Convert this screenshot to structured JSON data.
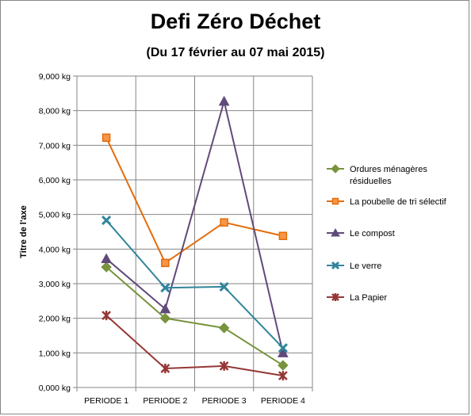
{
  "chart_data": {
    "type": "line",
    "title": "Defi Zéro Déchet",
    "subtitle": "(Du 17 février au 07 mai 2015)",
    "xlabel": "",
    "ylabel": "Titre de l'axe",
    "categories": [
      "PERIODE 1",
      "PERIODE 2",
      "PERIODE 3",
      "PERIODE 4"
    ],
    "ylim": [
      0,
      9000
    ],
    "yticks": [
      0,
      1000,
      2000,
      3000,
      4000,
      5000,
      6000,
      7000,
      8000,
      9000
    ],
    "ytick_labels": [
      "0,000 kg",
      "1,000 kg",
      "2,000 kg",
      "3,000 kg",
      "4,000 kg",
      "5,000 kg",
      "6,000 kg",
      "7,000 kg",
      "8,000 kg",
      "9,000 kg"
    ],
    "grid": true,
    "legend_position": "right",
    "series": [
      {
        "name": "Ordures ménagères résiduelles",
        "legend_lines": [
          "Ordures ménagères",
          "résiduelles"
        ],
        "values": [
          3480,
          2000,
          1720,
          640
        ],
        "color": "#77933C",
        "marker": "diamond"
      },
      {
        "name": "La poubelle de tri sélectif",
        "legend_lines": [
          "La poubelle de tri sélectif"
        ],
        "values": [
          7220,
          3600,
          4770,
          4380
        ],
        "color": "#E46C0A",
        "marker": "square"
      },
      {
        "name": "Le compost",
        "legend_lines": [
          "Le compost"
        ],
        "values": [
          3720,
          2270,
          8270,
          1000
        ],
        "color": "#604A7B",
        "marker": "triangle"
      },
      {
        "name": "Le verre",
        "legend_lines": [
          "Le verre"
        ],
        "values": [
          4830,
          2880,
          2910,
          1140
        ],
        "color": "#31859C",
        "marker": "x"
      },
      {
        "name": "La Papier",
        "legend_lines": [
          "La Papier"
        ],
        "values": [
          2080,
          550,
          620,
          340
        ],
        "color": "#953735",
        "marker": "star"
      }
    ]
  }
}
